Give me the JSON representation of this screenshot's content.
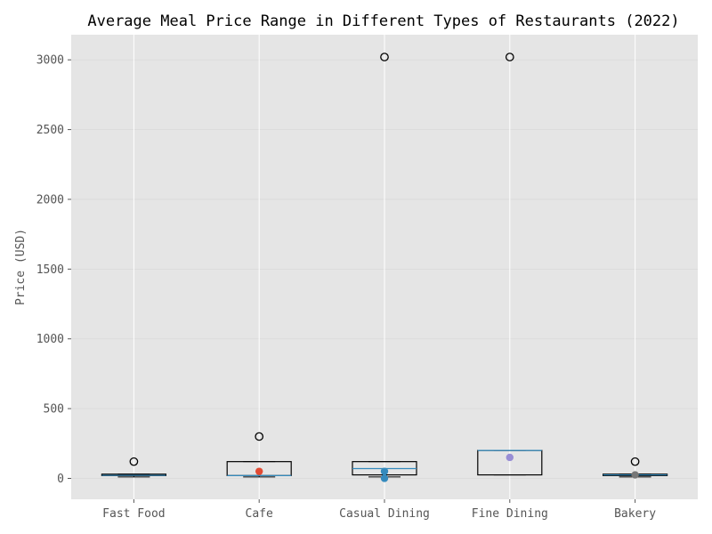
{
  "chart_data": {
    "type": "box",
    "title": "Average Meal Price Range in Different Types of Restaurants (2022)",
    "xlabel": "",
    "ylabel": "Price (USD)",
    "ylim": [
      -150,
      3180
    ],
    "yticks": [
      0,
      500,
      1000,
      1500,
      2000,
      2500,
      3000
    ],
    "grid": true,
    "categories": [
      "Fast Food",
      "Cafe",
      "Casual Dining",
      "Fine Dining",
      "Bakery"
    ],
    "boxes": [
      {
        "min": 10,
        "q1": 20,
        "median": 22,
        "q3": 30,
        "max": 30,
        "outliers": [
          120
        ]
      },
      {
        "min": 10,
        "q1": 20,
        "median": 20,
        "q3": 120,
        "max": 120,
        "outliers": [
          300
        ]
      },
      {
        "min": 10,
        "q1": 25,
        "median": 70,
        "q3": 120,
        "max": 120,
        "outliers": [
          3020
        ]
      },
      {
        "min": 25,
        "q1": 25,
        "median": 200,
        "q3": 200,
        "max": 200,
        "outliers": [
          3020
        ]
      },
      {
        "min": 10,
        "q1": 20,
        "median": 25,
        "q3": 30,
        "max": 30,
        "outliers": [
          120
        ]
      }
    ],
    "highlight_points": [
      {
        "category": "Cafe",
        "value": 50,
        "color": "#e24a33"
      },
      {
        "category": "Casual Dining",
        "value": 0,
        "color": "#348abd"
      },
      {
        "category": "Casual Dining",
        "value": 50,
        "color": "#348abd"
      },
      {
        "category": "Fine Dining",
        "value": 150,
        "color": "#988ed5"
      },
      {
        "category": "Bakery",
        "value": 25,
        "color": "#777777"
      }
    ],
    "colors": {
      "plot_background": "#e5e5e5",
      "grid": "#ffffff",
      "box": "#000000",
      "median": "#348abd"
    }
  }
}
